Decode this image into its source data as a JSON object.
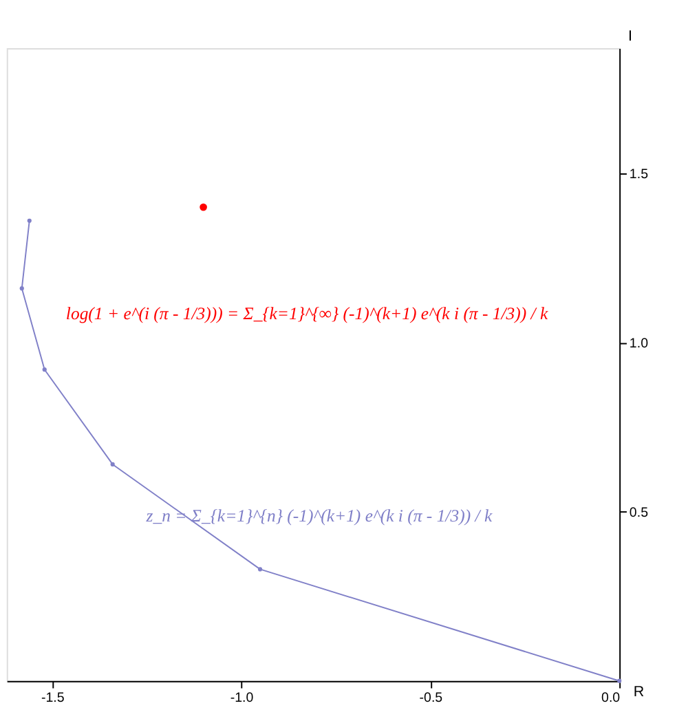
{
  "chart_data": {
    "type": "line",
    "xlabel": "R",
    "ylabel": "I",
    "series": [
      {
        "color": "#8080c8",
        "marker": "circle",
        "x": [
          0,
          -0.95,
          -1.34,
          -1.52,
          -1.58,
          -1.56
        ],
        "values": [
          0,
          0.33,
          0.64,
          0.92,
          1.16,
          1.36
        ]
      },
      {
        "type": "scatter",
        "color": "#ff0000",
        "marker": "circle",
        "x": [
          -1.1
        ],
        "values": [
          1.4
        ]
      }
    ],
    "xlim": [
      -1.62,
      0
    ],
    "ylim": [
      0,
      1.87
    ],
    "xticks": [
      {
        "value": -1.5,
        "label": "-1.5"
      },
      {
        "value": -1,
        "label": "-1.0"
      },
      {
        "value": -0.5,
        "label": "-0.5"
      },
      {
        "value": 0,
        "label": "0.0"
      }
    ],
    "yticks": [
      0.5,
      {
        "value": 1,
        "label": "1.0"
      },
      1.5
    ],
    "grid": false,
    "annotations": [
      "log(1 + e^(i (π - 1/3))) = Σ_{k=1}^{∞} (-1)^(k+1) e^(k i (π - 1/3)) / k",
      "z_n = Σ_{k=1}^{n} (-1)^(k+1) e^(k i (π - 1/3)) / k"
    ]
  }
}
